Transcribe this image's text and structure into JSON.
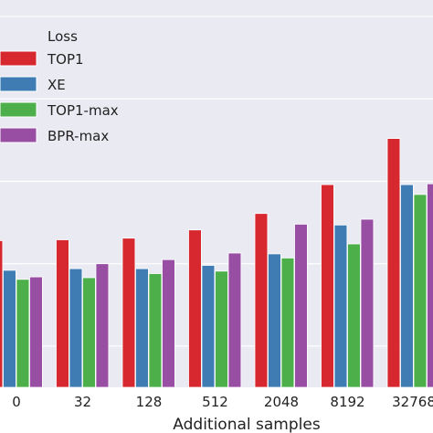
{
  "chart_data": {
    "type": "bar",
    "xlabel": "Additional samples",
    "ylabel": "",
    "categories": [
      "0",
      "32",
      "128",
      "512",
      "2048",
      "8192",
      "32768"
    ],
    "legend": {
      "title": "Loss",
      "placement": "top-left"
    },
    "grid": true,
    "ylim": [
      0,
      4.7
    ],
    "series": [
      {
        "name": "TOP1",
        "color": "#d7282f",
        "values": [
          1.78,
          1.79,
          1.81,
          1.91,
          2.11,
          2.46,
          3.02
        ]
      },
      {
        "name": "XE",
        "color": "#3f7cb4",
        "values": [
          1.42,
          1.44,
          1.44,
          1.48,
          1.62,
          1.97,
          2.46
        ]
      },
      {
        "name": "TOP1-max",
        "color": "#4caf4a",
        "values": [
          1.31,
          1.33,
          1.38,
          1.41,
          1.57,
          1.74,
          2.34
        ]
      },
      {
        "name": "BPR-max",
        "color": "#984ea3",
        "values": [
          1.34,
          1.5,
          1.55,
          1.63,
          1.98,
          2.04,
          2.47
        ]
      }
    ]
  }
}
